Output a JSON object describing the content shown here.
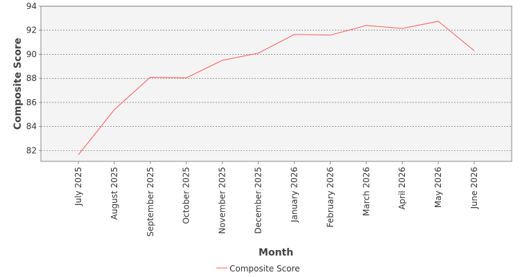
{
  "chart_data": {
    "type": "line",
    "x_label": "Month",
    "y_label": "Composite Score",
    "categories": [
      "July 2025",
      "August 2025",
      "September 2025",
      "October 2025",
      "November 2025",
      "December 2025",
      "January 2026",
      "February 2026",
      "March 2026",
      "April 2026",
      "May 2026",
      "June 2026"
    ],
    "series": [
      {
        "name": "Composite Score",
        "color": "#ff5555",
        "values": [
          81.65,
          85.4,
          88.1,
          88.05,
          89.5,
          90.1,
          91.65,
          91.6,
          92.4,
          92.15,
          92.75,
          90.3
        ]
      }
    ],
    "ylim": [
      81.1,
      94
    ],
    "yticks": [
      82,
      84,
      86,
      88,
      90,
      92,
      94
    ],
    "grid": true,
    "legend": "bottom"
  }
}
